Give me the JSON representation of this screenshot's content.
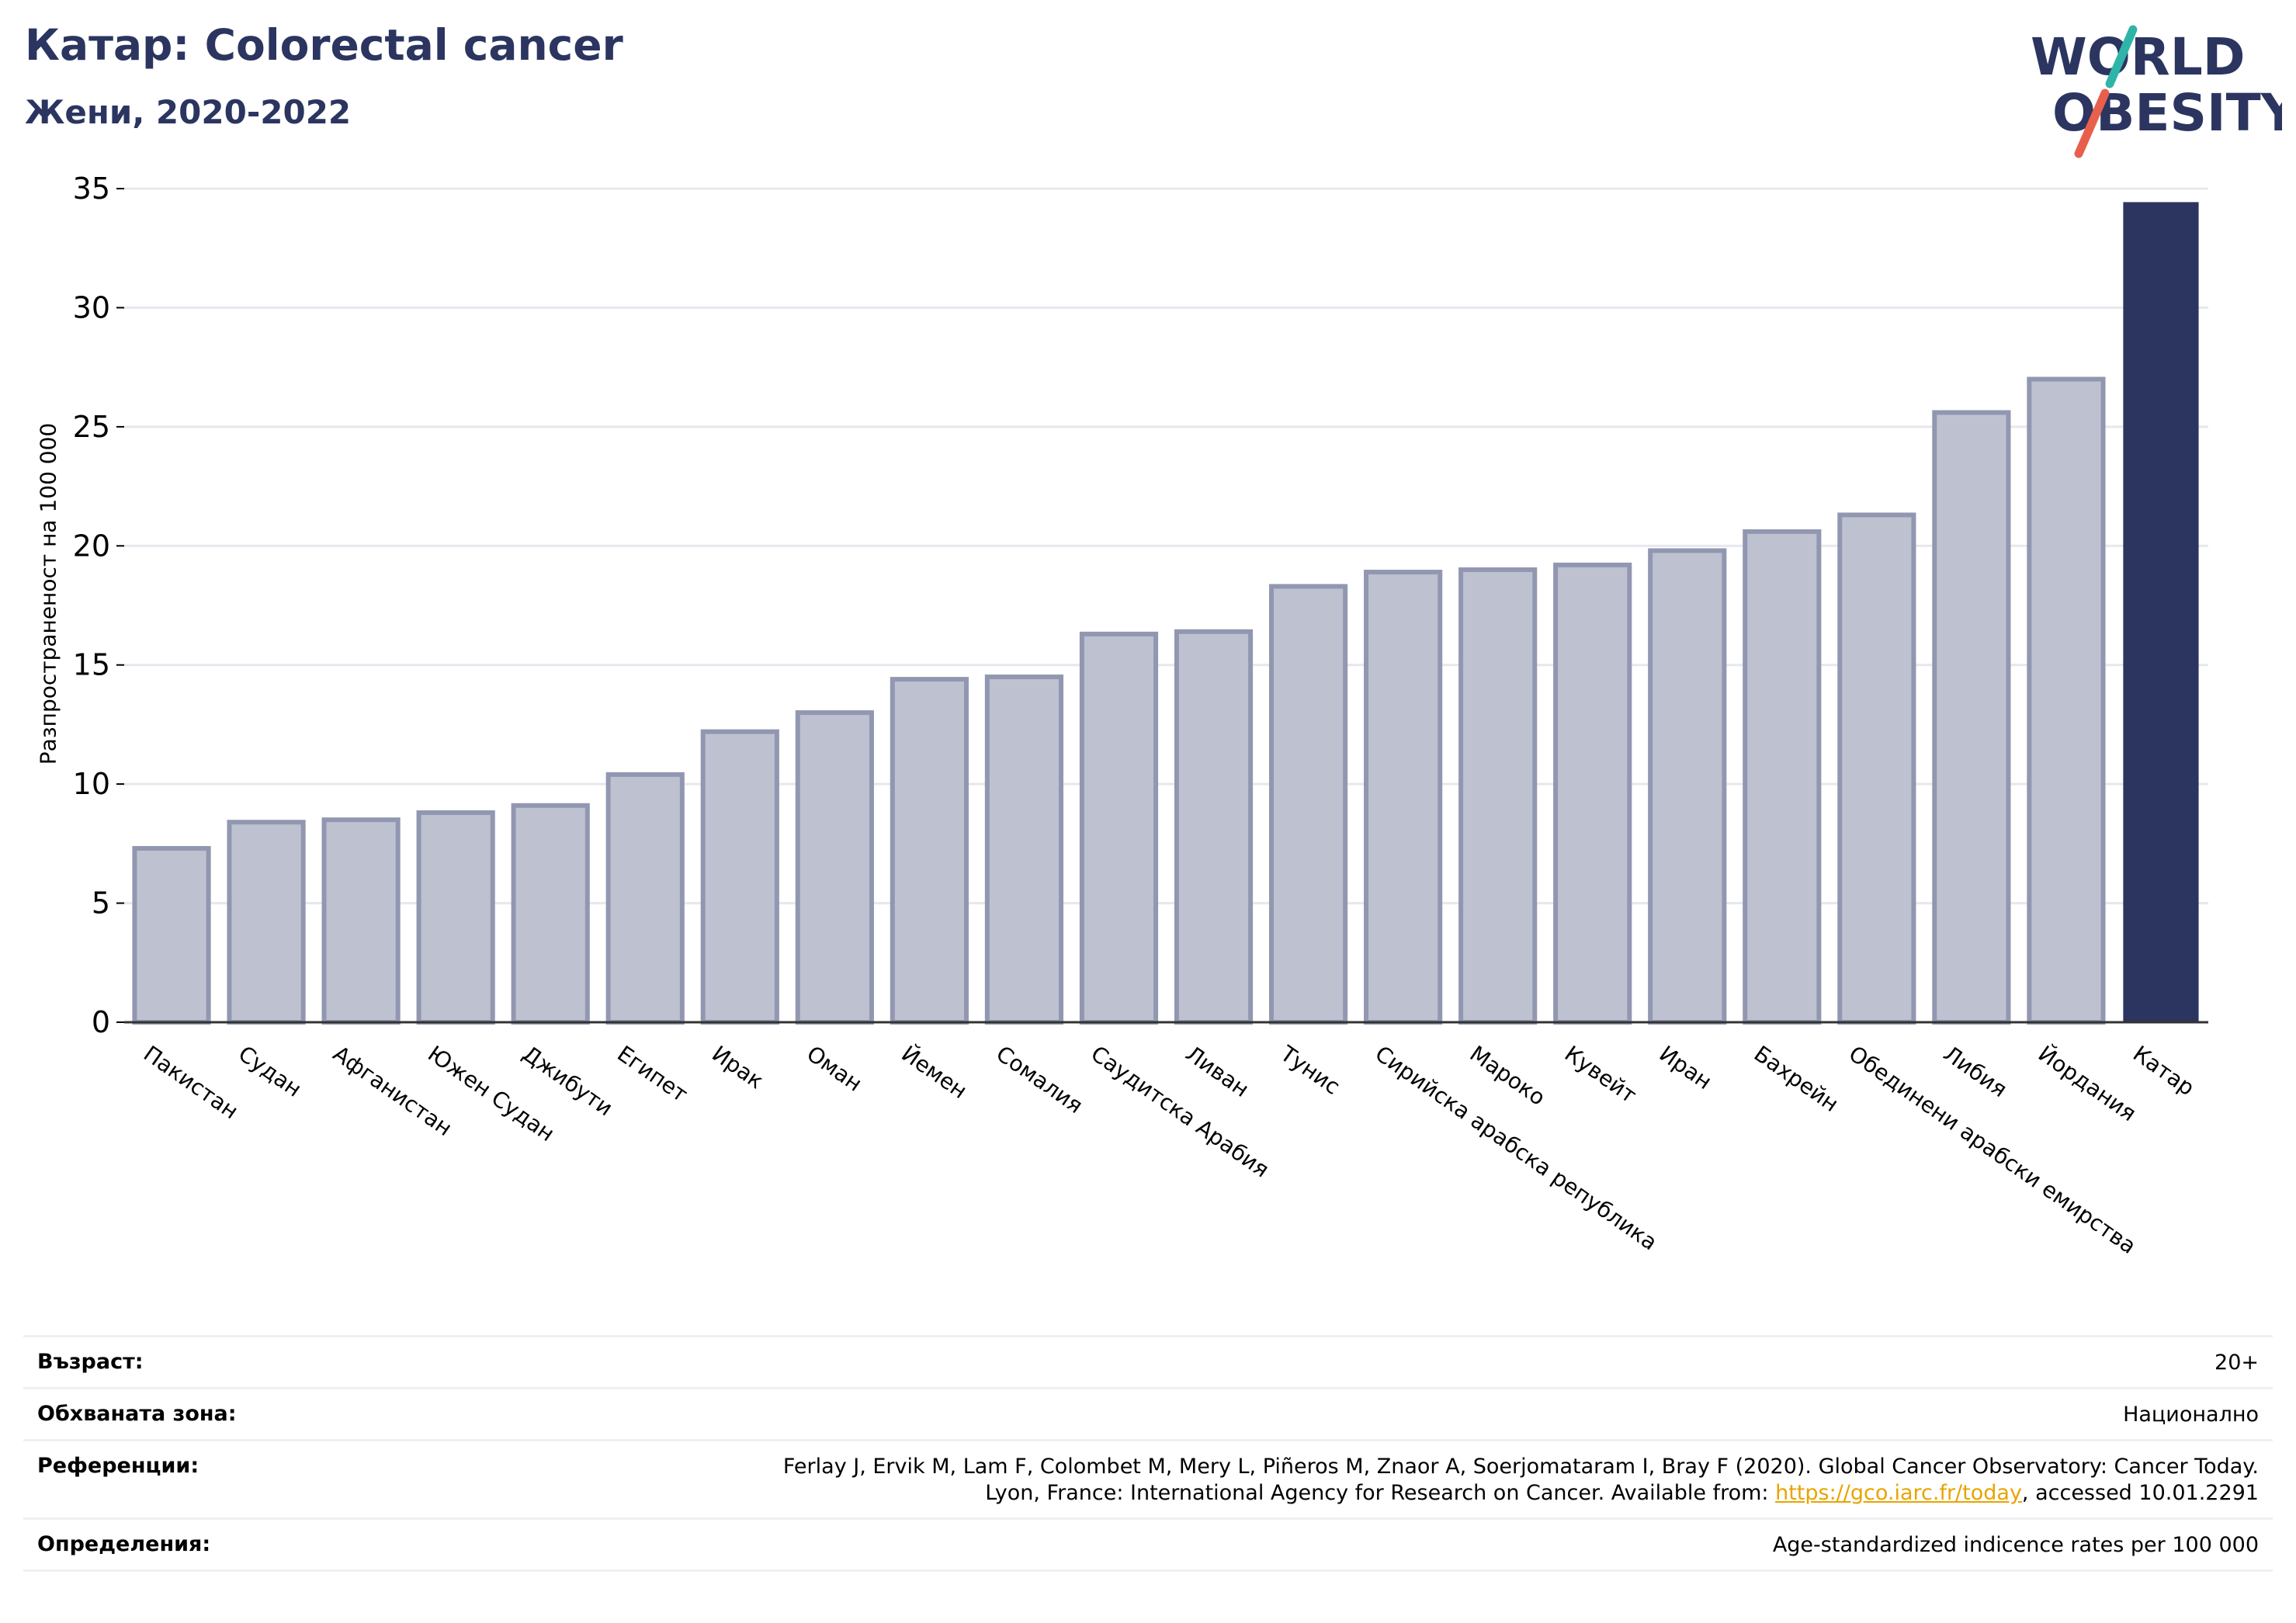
{
  "header": {
    "title": "Катар: Colorectal cancer",
    "subtitle": "Жени, 2020-2022"
  },
  "logo": {
    "line1": "WORLD",
    "line2": "OBESITY",
    "accent_colors": [
      "#2fb5a8",
      "#e8604c"
    ]
  },
  "chart_data": {
    "type": "bar",
    "title": "Катар: Colorectal cancer",
    "subtitle": "Жени, 2020-2022",
    "ylabel": "Разпространеност  на 100 000",
    "xlabel": "",
    "ylim": [
      0,
      35
    ],
    "yticks": [
      0,
      5,
      10,
      15,
      20,
      25,
      30,
      35
    ],
    "grid": true,
    "highlight": "Катар",
    "colors": {
      "bar": "#bec1cf",
      "bar_edge": "#9297b1",
      "highlight": "#2b3560"
    },
    "categories": [
      "Пакистан",
      "Судан",
      "Афганистан",
      "Южен Судан",
      "Джибути",
      "Египет",
      "Ирак",
      "Оман",
      "Йемен",
      "Сомалия",
      "Саудитска Арабия",
      "Ливан",
      "Тунис",
      "Сирийска арабска република",
      "Мароко",
      "Кувейт",
      "Иран",
      "Бахрейн",
      "Обединени арабски емирства",
      "Либия",
      "Йордания",
      "Катар"
    ],
    "values": [
      7.3,
      8.4,
      8.5,
      8.8,
      9.1,
      10.4,
      12.2,
      13.0,
      14.4,
      14.5,
      16.3,
      16.4,
      18.3,
      18.9,
      19.0,
      19.2,
      19.8,
      20.6,
      21.3,
      25.6,
      27.0,
      34.4
    ]
  },
  "info": [
    {
      "key": "Възраст:",
      "value": "20+"
    },
    {
      "key": "Обхваната зона:",
      "value": "Национално"
    },
    {
      "key": "Референции:",
      "value_line1": "Ferlay J, Ervik M, Lam F, Colombet M, Mery L, Piñeros M, Znaor A, Soerjomataram I, Bray F (2020). Global Cancer Observatory: Cancer Today.",
      "value_line2_pre": "Lyon, France: International Agency for Research on Cancer. Available from: ",
      "value_link": "https://gco.iarc.fr/today",
      "value_line2_post": ", accessed 10.01.2291"
    },
    {
      "key": "Определения:",
      "value": "Age-standardized indicence rates per 100 000"
    }
  ]
}
